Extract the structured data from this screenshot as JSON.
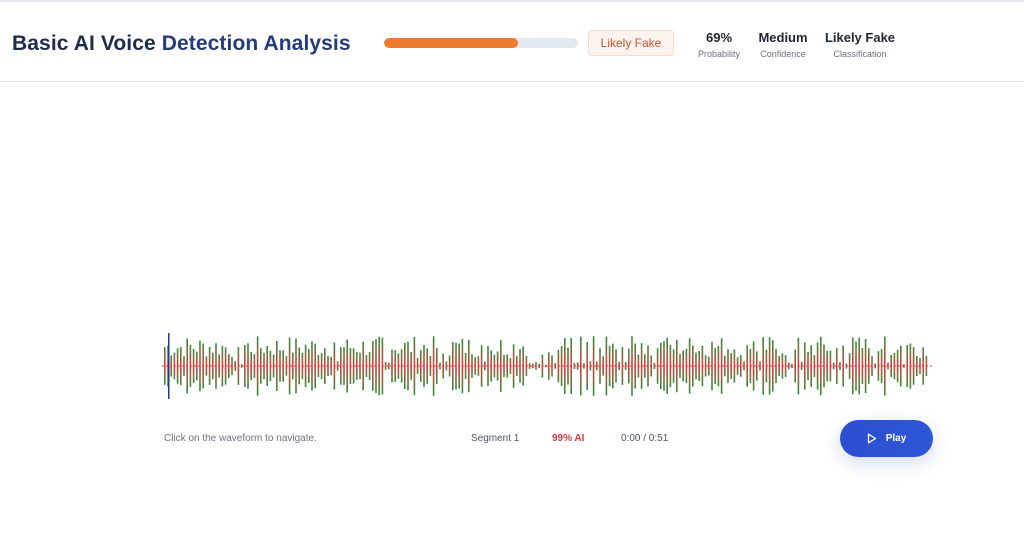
{
  "header": {
    "title_prefix": "Basic AI Voice",
    "title_suffix": "Detection Analysis",
    "probability_fraction": 0.69,
    "badge": "Likely Fake",
    "stats": [
      {
        "value": "69%",
        "label": "Probability"
      },
      {
        "value": "Medium",
        "label": "Confidence"
      },
      {
        "value": "Likely Fake",
        "label": "Classification"
      }
    ]
  },
  "colors": {
    "accent": "#2f56d8",
    "progress": "#f07b2e",
    "badge_text": "#c2572d",
    "wave_top": "#2f8f3a",
    "wave_bottom": "#e23b3b",
    "ai_red": "#d0393b"
  },
  "player": {
    "hint": "Click on the waveform to navigate.",
    "segment": "Segment 1",
    "ai_percent": "99% AI",
    "time": "0:00 / 0:51",
    "play_label": "Play",
    "play_icon": "play-icon"
  }
}
